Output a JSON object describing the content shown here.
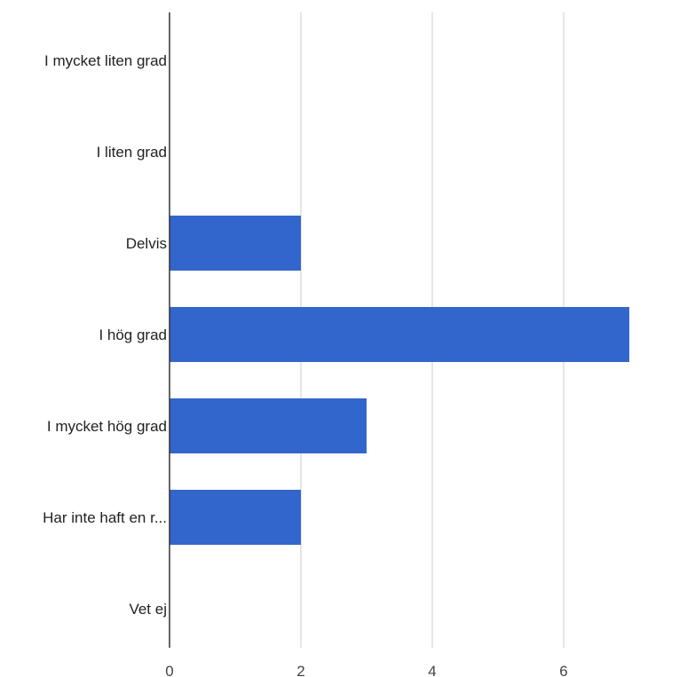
{
  "chart_data": {
    "type": "bar",
    "orientation": "horizontal",
    "categories": [
      "I mycket liten grad",
      "I liten grad",
      "Delvis",
      "I hög grad",
      "I mycket hög grad",
      "Har inte haft en r...",
      "Vet ej"
    ],
    "values": [
      0,
      0,
      2,
      7,
      3,
      2,
      0
    ],
    "x_ticks": [
      "0",
      "2",
      "4",
      "6"
    ],
    "xlim": [
      0,
      8
    ],
    "grid": true,
    "legend": "none",
    "title": "",
    "xlabel": "",
    "ylabel": "",
    "bar_color": "#3366cc"
  }
}
